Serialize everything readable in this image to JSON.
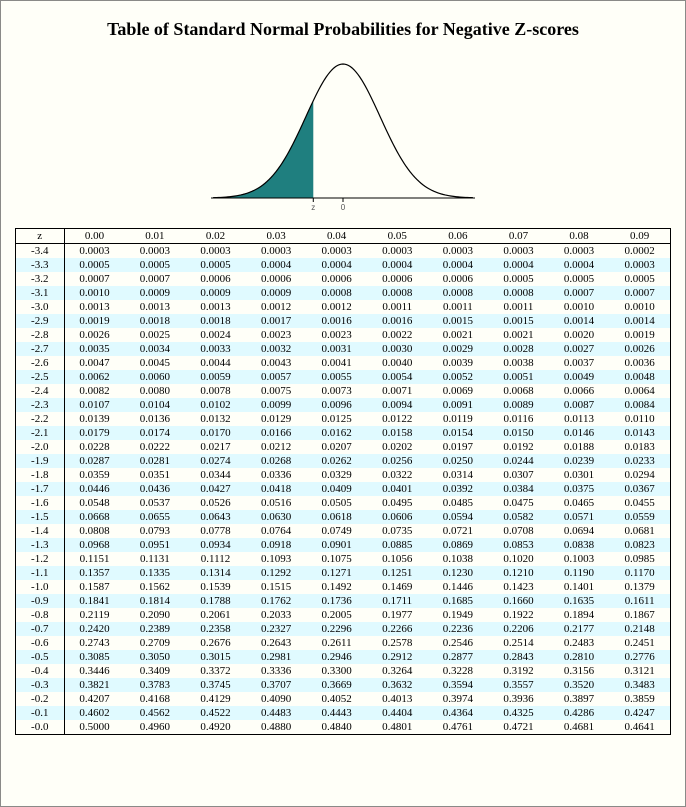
{
  "title": "Table of Standard Normal Probabilities for Negative Z-scores",
  "chart": {
    "type": "area",
    "x_range": [
      -3.5,
      3.5
    ],
    "shade_range": [
      -3.5,
      -0.8
    ],
    "curve_color": "#000000",
    "fill_color": "#1f7f7f",
    "axis_color": "#000000",
    "background": "#ffffff",
    "x_ticks_labels": [
      "z",
      "0"
    ],
    "line_width": 1.2
  },
  "table": {
    "header_label": "z",
    "alt_row_color": "#e0faff",
    "columns": [
      "0.00",
      "0.01",
      "0.02",
      "0.03",
      "0.04",
      "0.05",
      "0.06",
      "0.07",
      "0.08",
      "0.09"
    ],
    "row_labels": [
      "-3.4",
      "-3.3",
      "-3.2",
      "-3.1",
      "-3.0",
      "-2.9",
      "-2.8",
      "-2.7",
      "-2.6",
      "-2.5",
      "-2.4",
      "-2.3",
      "-2.2",
      "-2.1",
      "-2.0",
      "-1.9",
      "-1.8",
      "-1.7",
      "-1.6",
      "-1.5",
      "-1.4",
      "-1.3",
      "-1.2",
      "-1.1",
      "-1.0",
      "-0.9",
      "-0.8",
      "-0.7",
      "-0.6",
      "-0.5",
      "-0.4",
      "-0.3",
      "-0.2",
      "-0.1",
      "-0.0"
    ],
    "rows": [
      [
        "0.0003",
        "0.0003",
        "0.0003",
        "0.0003",
        "0.0003",
        "0.0003",
        "0.0003",
        "0.0003",
        "0.0003",
        "0.0002"
      ],
      [
        "0.0005",
        "0.0005",
        "0.0005",
        "0.0004",
        "0.0004",
        "0.0004",
        "0.0004",
        "0.0004",
        "0.0004",
        "0.0003"
      ],
      [
        "0.0007",
        "0.0007",
        "0.0006",
        "0.0006",
        "0.0006",
        "0.0006",
        "0.0006",
        "0.0005",
        "0.0005",
        "0.0005"
      ],
      [
        "0.0010",
        "0.0009",
        "0.0009",
        "0.0009",
        "0.0008",
        "0.0008",
        "0.0008",
        "0.0008",
        "0.0007",
        "0.0007"
      ],
      [
        "0.0013",
        "0.0013",
        "0.0013",
        "0.0012",
        "0.0012",
        "0.0011",
        "0.0011",
        "0.0011",
        "0.0010",
        "0.0010"
      ],
      [
        "0.0019",
        "0.0018",
        "0.0018",
        "0.0017",
        "0.0016",
        "0.0016",
        "0.0015",
        "0.0015",
        "0.0014",
        "0.0014"
      ],
      [
        "0.0026",
        "0.0025",
        "0.0024",
        "0.0023",
        "0.0023",
        "0.0022",
        "0.0021",
        "0.0021",
        "0.0020",
        "0.0019"
      ],
      [
        "0.0035",
        "0.0034",
        "0.0033",
        "0.0032",
        "0.0031",
        "0.0030",
        "0.0029",
        "0.0028",
        "0.0027",
        "0.0026"
      ],
      [
        "0.0047",
        "0.0045",
        "0.0044",
        "0.0043",
        "0.0041",
        "0.0040",
        "0.0039",
        "0.0038",
        "0.0037",
        "0.0036"
      ],
      [
        "0.0062",
        "0.0060",
        "0.0059",
        "0.0057",
        "0.0055",
        "0.0054",
        "0.0052",
        "0.0051",
        "0.0049",
        "0.0048"
      ],
      [
        "0.0082",
        "0.0080",
        "0.0078",
        "0.0075",
        "0.0073",
        "0.0071",
        "0.0069",
        "0.0068",
        "0.0066",
        "0.0064"
      ],
      [
        "0.0107",
        "0.0104",
        "0.0102",
        "0.0099",
        "0.0096",
        "0.0094",
        "0.0091",
        "0.0089",
        "0.0087",
        "0.0084"
      ],
      [
        "0.0139",
        "0.0136",
        "0.0132",
        "0.0129",
        "0.0125",
        "0.0122",
        "0.0119",
        "0.0116",
        "0.0113",
        "0.0110"
      ],
      [
        "0.0179",
        "0.0174",
        "0.0170",
        "0.0166",
        "0.0162",
        "0.0158",
        "0.0154",
        "0.0150",
        "0.0146",
        "0.0143"
      ],
      [
        "0.0228",
        "0.0222",
        "0.0217",
        "0.0212",
        "0.0207",
        "0.0202",
        "0.0197",
        "0.0192",
        "0.0188",
        "0.0183"
      ],
      [
        "0.0287",
        "0.0281",
        "0.0274",
        "0.0268",
        "0.0262",
        "0.0256",
        "0.0250",
        "0.0244",
        "0.0239",
        "0.0233"
      ],
      [
        "0.0359",
        "0.0351",
        "0.0344",
        "0.0336",
        "0.0329",
        "0.0322",
        "0.0314",
        "0.0307",
        "0.0301",
        "0.0294"
      ],
      [
        "0.0446",
        "0.0436",
        "0.0427",
        "0.0418",
        "0.0409",
        "0.0401",
        "0.0392",
        "0.0384",
        "0.0375",
        "0.0367"
      ],
      [
        "0.0548",
        "0.0537",
        "0.0526",
        "0.0516",
        "0.0505",
        "0.0495",
        "0.0485",
        "0.0475",
        "0.0465",
        "0.0455"
      ],
      [
        "0.0668",
        "0.0655",
        "0.0643",
        "0.0630",
        "0.0618",
        "0.0606",
        "0.0594",
        "0.0582",
        "0.0571",
        "0.0559"
      ],
      [
        "0.0808",
        "0.0793",
        "0.0778",
        "0.0764",
        "0.0749",
        "0.0735",
        "0.0721",
        "0.0708",
        "0.0694",
        "0.0681"
      ],
      [
        "0.0968",
        "0.0951",
        "0.0934",
        "0.0918",
        "0.0901",
        "0.0885",
        "0.0869",
        "0.0853",
        "0.0838",
        "0.0823"
      ],
      [
        "0.1151",
        "0.1131",
        "0.1112",
        "0.1093",
        "0.1075",
        "0.1056",
        "0.1038",
        "0.1020",
        "0.1003",
        "0.0985"
      ],
      [
        "0.1357",
        "0.1335",
        "0.1314",
        "0.1292",
        "0.1271",
        "0.1251",
        "0.1230",
        "0.1210",
        "0.1190",
        "0.1170"
      ],
      [
        "0.1587",
        "0.1562",
        "0.1539",
        "0.1515",
        "0.1492",
        "0.1469",
        "0.1446",
        "0.1423",
        "0.1401",
        "0.1379"
      ],
      [
        "0.1841",
        "0.1814",
        "0.1788",
        "0.1762",
        "0.1736",
        "0.1711",
        "0.1685",
        "0.1660",
        "0.1635",
        "0.1611"
      ],
      [
        "0.2119",
        "0.2090",
        "0.2061",
        "0.2033",
        "0.2005",
        "0.1977",
        "0.1949",
        "0.1922",
        "0.1894",
        "0.1867"
      ],
      [
        "0.2420",
        "0.2389",
        "0.2358",
        "0.2327",
        "0.2296",
        "0.2266",
        "0.2236",
        "0.2206",
        "0.2177",
        "0.2148"
      ],
      [
        "0.2743",
        "0.2709",
        "0.2676",
        "0.2643",
        "0.2611",
        "0.2578",
        "0.2546",
        "0.2514",
        "0.2483",
        "0.2451"
      ],
      [
        "0.3085",
        "0.3050",
        "0.3015",
        "0.2981",
        "0.2946",
        "0.2912",
        "0.2877",
        "0.2843",
        "0.2810",
        "0.2776"
      ],
      [
        "0.3446",
        "0.3409",
        "0.3372",
        "0.3336",
        "0.3300",
        "0.3264",
        "0.3228",
        "0.3192",
        "0.3156",
        "0.3121"
      ],
      [
        "0.3821",
        "0.3783",
        "0.3745",
        "0.3707",
        "0.3669",
        "0.3632",
        "0.3594",
        "0.3557",
        "0.3520",
        "0.3483"
      ],
      [
        "0.4207",
        "0.4168",
        "0.4129",
        "0.4090",
        "0.4052",
        "0.4013",
        "0.3974",
        "0.3936",
        "0.3897",
        "0.3859"
      ],
      [
        "0.4602",
        "0.4562",
        "0.4522",
        "0.4483",
        "0.4443",
        "0.4404",
        "0.4364",
        "0.4325",
        "0.4286",
        "0.4247"
      ],
      [
        "0.5000",
        "0.4960",
        "0.4920",
        "0.4880",
        "0.4840",
        "0.4801",
        "0.4761",
        "0.4721",
        "0.4681",
        "0.4641"
      ]
    ]
  }
}
